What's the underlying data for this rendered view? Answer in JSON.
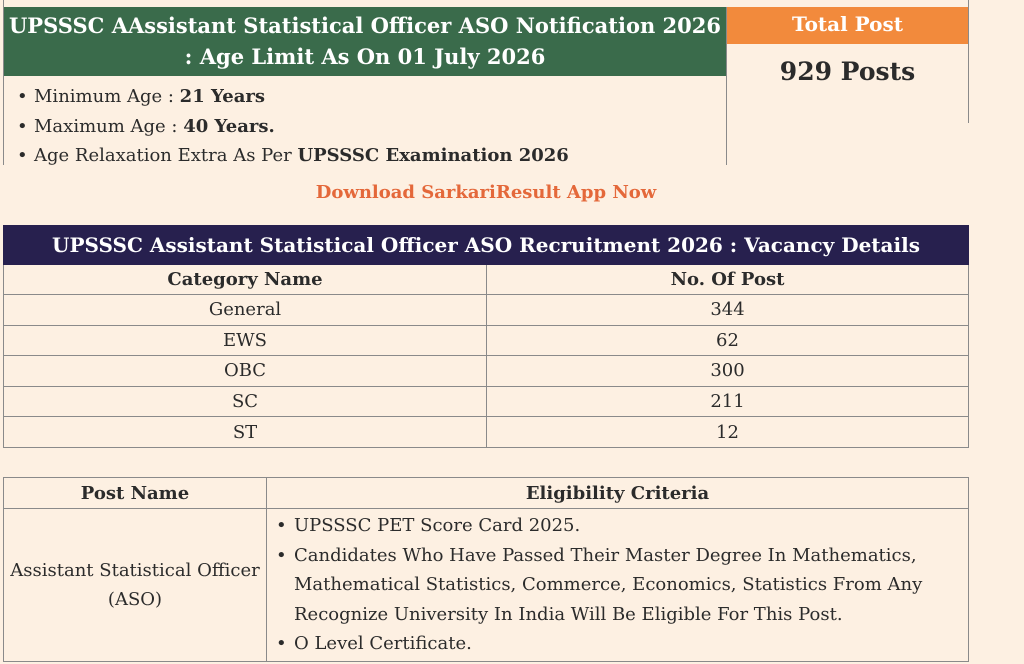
{
  "age_limit": {
    "title": "UPSSSC AAssistant Statistical Officer ASO Notification 2026 : Age Limit As On 01 July 2026",
    "items": [
      {
        "label": "Minimum Age : ",
        "value": "21 Years"
      },
      {
        "label": "Maximum Age : ",
        "value": "40 Years."
      },
      {
        "label": "Age Relaxation Extra As Per ",
        "value": "UPSSSC Examination 2026"
      }
    ]
  },
  "total_post": {
    "label": "Total Post",
    "value": "929 Posts"
  },
  "download_link": "Download SarkariResult App Now",
  "vacancy": {
    "title": "UPSSSC Assistant Statistical Officer ASO Recruitment 2026 : Vacancy Details",
    "columns": [
      "Category Name",
      "No. Of Post"
    ],
    "rows": [
      [
        "General",
        "344"
      ],
      [
        "EWS",
        "62"
      ],
      [
        "OBC",
        "300"
      ],
      [
        "SC",
        "211"
      ],
      [
        "ST",
        "12"
      ]
    ]
  },
  "eligibility": {
    "columns": [
      "Post Name",
      "Eligibility Criteria"
    ],
    "post_name": "Assistant Statistical Officer (ASO)",
    "criteria": [
      "UPSSSC PET Score Card 2025.",
      "Candidates Who Have Passed Their Master Degree In Mathematics, Mathematical Statistics, Commerce, Economics, Statistics From Any Recognize University In India Will Be Eligible For This Post.",
      "O Level Certificate."
    ]
  }
}
